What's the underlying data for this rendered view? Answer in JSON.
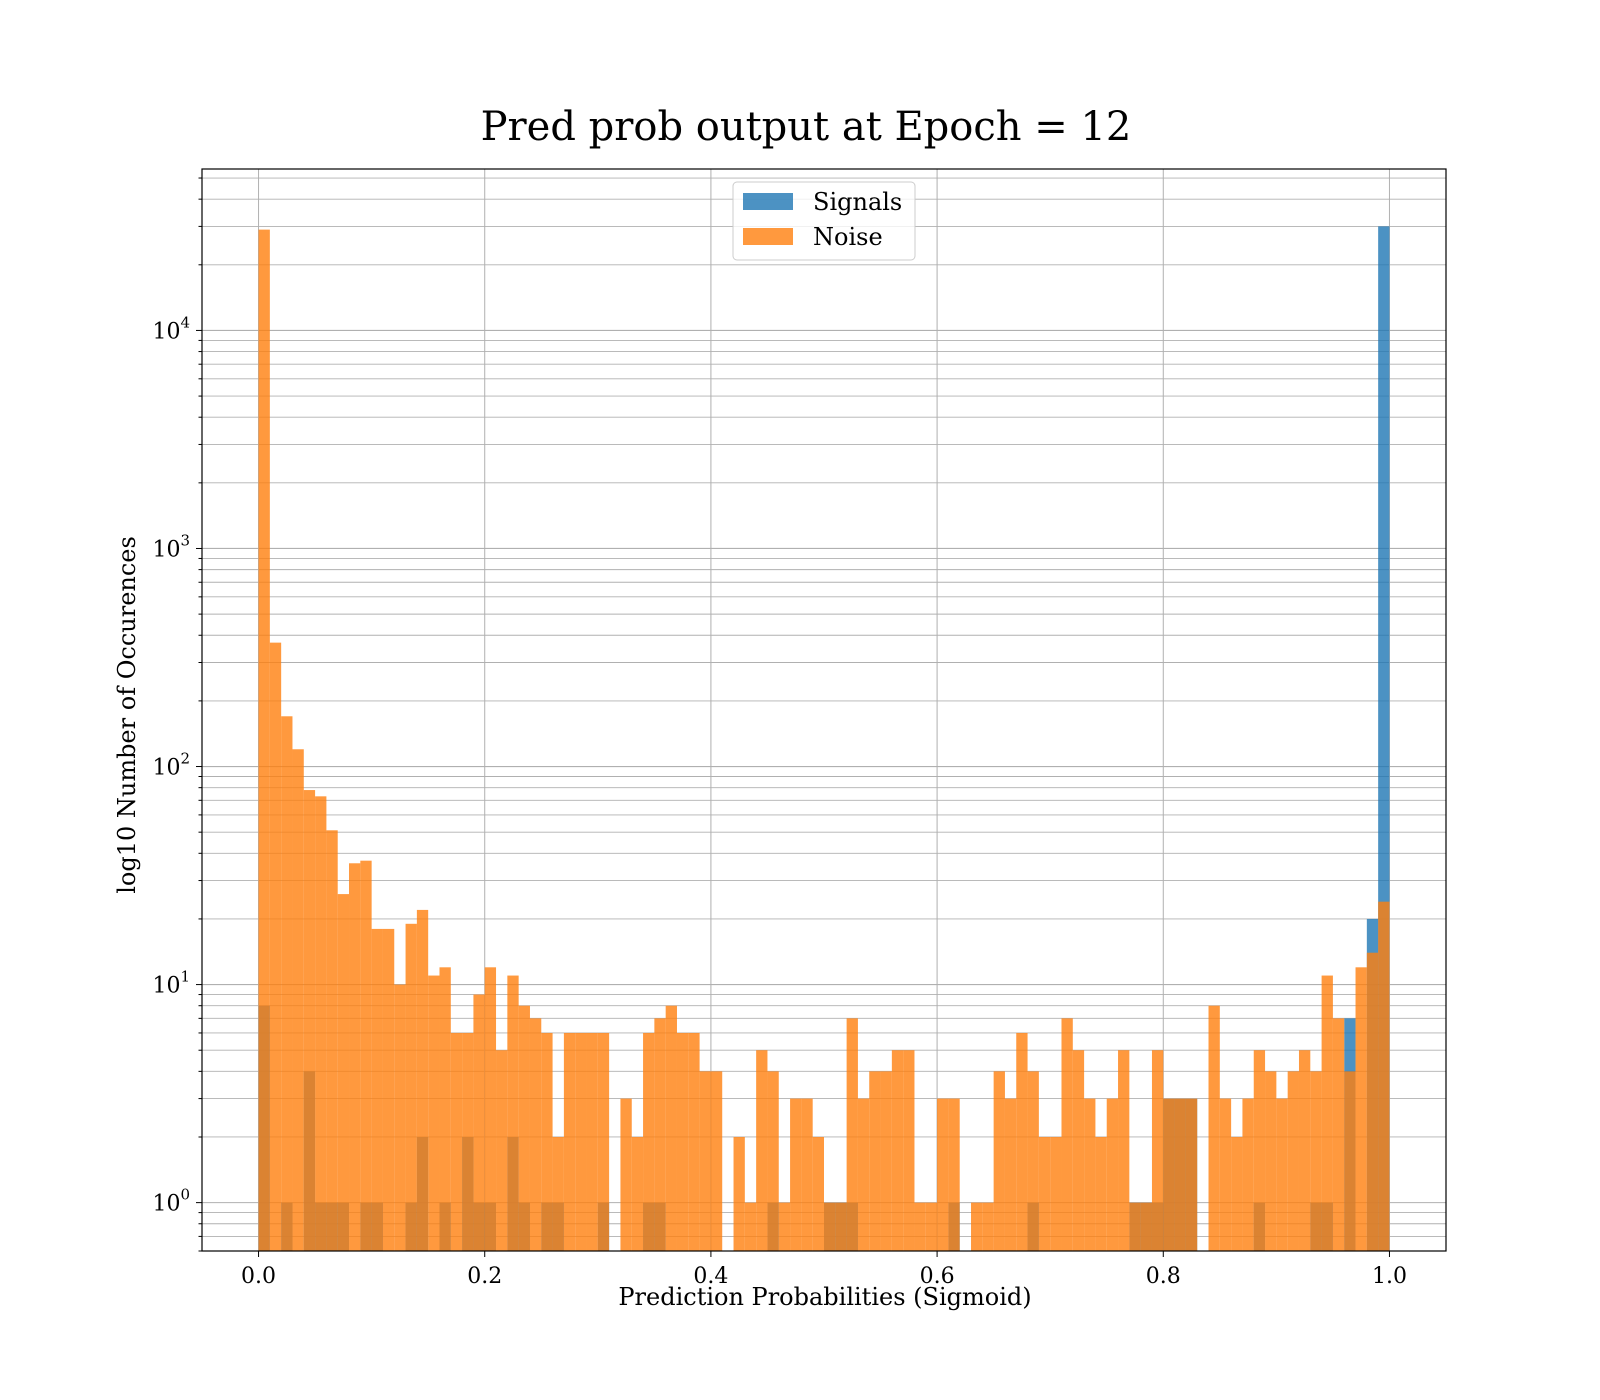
{
  "chart_data": {
    "type": "bar",
    "title": "Pred prob output at Epoch = 12",
    "xlabel": "Prediction Probabilities (Sigmoid)",
    "ylabel": "log10 Number of Occurences",
    "xlim": [
      -0.05,
      1.05
    ],
    "ylim": [
      0.6,
      55000
    ],
    "yscale": "log",
    "grid": true,
    "legend_position": "top-center",
    "bins": 100,
    "x_ticks": [
      "0.0",
      "0.2",
      "0.4",
      "0.6",
      "0.8",
      "1.0"
    ],
    "y_ticks": [
      {
        "value": 1,
        "base": "10",
        "exp": "0"
      },
      {
        "value": 10,
        "base": "10",
        "exp": "1"
      },
      {
        "value": 100,
        "base": "10",
        "exp": "2"
      },
      {
        "value": 1000,
        "base": "10",
        "exp": "3"
      },
      {
        "value": 10000,
        "base": "10",
        "exp": "4"
      }
    ],
    "series": [
      {
        "name": "Signals",
        "color": "#1f77b4",
        "bins": [
          [
            0.0,
            8
          ],
          [
            0.02,
            1
          ],
          [
            0.04,
            4
          ],
          [
            0.05,
            1
          ],
          [
            0.06,
            1
          ],
          [
            0.07,
            1
          ],
          [
            0.09,
            1
          ],
          [
            0.1,
            1
          ],
          [
            0.13,
            1
          ],
          [
            0.14,
            2
          ],
          [
            0.16,
            1
          ],
          [
            0.18,
            2
          ],
          [
            0.19,
            1
          ],
          [
            0.2,
            1
          ],
          [
            0.22,
            2
          ],
          [
            0.23,
            1
          ],
          [
            0.25,
            1
          ],
          [
            0.26,
            1
          ],
          [
            0.3,
            1
          ],
          [
            0.34,
            1
          ],
          [
            0.35,
            1
          ],
          [
            0.45,
            1
          ],
          [
            0.5,
            1
          ],
          [
            0.51,
            1
          ],
          [
            0.52,
            1
          ],
          [
            0.61,
            1
          ],
          [
            0.68,
            1
          ],
          [
            0.77,
            1
          ],
          [
            0.78,
            1
          ],
          [
            0.79,
            1
          ],
          [
            0.8,
            3
          ],
          [
            0.81,
            3
          ],
          [
            0.82,
            3
          ],
          [
            0.88,
            1
          ],
          [
            0.93,
            1
          ],
          [
            0.94,
            1
          ],
          [
            0.96,
            7
          ],
          [
            0.98,
            20
          ],
          [
            0.99,
            30000
          ]
        ]
      },
      {
        "name": "Noise",
        "color": "#ff7f0e",
        "bins": [
          [
            0.0,
            29000
          ],
          [
            0.01,
            370
          ],
          [
            0.02,
            170
          ],
          [
            0.03,
            120
          ],
          [
            0.04,
            78
          ],
          [
            0.05,
            73
          ],
          [
            0.06,
            51
          ],
          [
            0.07,
            26
          ],
          [
            0.08,
            36
          ],
          [
            0.09,
            37
          ],
          [
            0.1,
            18
          ],
          [
            0.11,
            18
          ],
          [
            0.12,
            10
          ],
          [
            0.13,
            19
          ],
          [
            0.14,
            22
          ],
          [
            0.15,
            11
          ],
          [
            0.16,
            12
          ],
          [
            0.17,
            6
          ],
          [
            0.18,
            6
          ],
          [
            0.19,
            9
          ],
          [
            0.2,
            12
          ],
          [
            0.21,
            5
          ],
          [
            0.22,
            11
          ],
          [
            0.23,
            8
          ],
          [
            0.24,
            7
          ],
          [
            0.25,
            6
          ],
          [
            0.26,
            2
          ],
          [
            0.27,
            6
          ],
          [
            0.28,
            6
          ],
          [
            0.29,
            6
          ],
          [
            0.3,
            6
          ],
          [
            0.31,
            0
          ],
          [
            0.32,
            3
          ],
          [
            0.33,
            2
          ],
          [
            0.34,
            6
          ],
          [
            0.35,
            7
          ],
          [
            0.36,
            8
          ],
          [
            0.37,
            6
          ],
          [
            0.38,
            6
          ],
          [
            0.39,
            4
          ],
          [
            0.4,
            4
          ],
          [
            0.41,
            0
          ],
          [
            0.42,
            2
          ],
          [
            0.43,
            1
          ],
          [
            0.44,
            5
          ],
          [
            0.45,
            4
          ],
          [
            0.46,
            1
          ],
          [
            0.47,
            3
          ],
          [
            0.48,
            3
          ],
          [
            0.49,
            2
          ],
          [
            0.5,
            1
          ],
          [
            0.51,
            1
          ],
          [
            0.52,
            7
          ],
          [
            0.53,
            3
          ],
          [
            0.54,
            4
          ],
          [
            0.55,
            4
          ],
          [
            0.56,
            5
          ],
          [
            0.57,
            5
          ],
          [
            0.58,
            1
          ],
          [
            0.59,
            1
          ],
          [
            0.6,
            3
          ],
          [
            0.61,
            3
          ],
          [
            0.62,
            0
          ],
          [
            0.63,
            1
          ],
          [
            0.64,
            1
          ],
          [
            0.65,
            4
          ],
          [
            0.66,
            3
          ],
          [
            0.67,
            6
          ],
          [
            0.68,
            4
          ],
          [
            0.69,
            2
          ],
          [
            0.7,
            2
          ],
          [
            0.71,
            7
          ],
          [
            0.72,
            5
          ],
          [
            0.73,
            3
          ],
          [
            0.74,
            2
          ],
          [
            0.75,
            3
          ],
          [
            0.76,
            5
          ],
          [
            0.77,
            1
          ],
          [
            0.78,
            1
          ],
          [
            0.79,
            5
          ],
          [
            0.8,
            3
          ],
          [
            0.81,
            3
          ],
          [
            0.82,
            3
          ],
          [
            0.83,
            0
          ],
          [
            0.84,
            8
          ],
          [
            0.85,
            3
          ],
          [
            0.86,
            2
          ],
          [
            0.87,
            3
          ],
          [
            0.88,
            5
          ],
          [
            0.89,
            4
          ],
          [
            0.9,
            3
          ],
          [
            0.91,
            4
          ],
          [
            0.92,
            5
          ],
          [
            0.93,
            4
          ],
          [
            0.94,
            11
          ],
          [
            0.95,
            7
          ],
          [
            0.96,
            4
          ],
          [
            0.97,
            12
          ],
          [
            0.98,
            14
          ],
          [
            0.99,
            24
          ]
        ]
      }
    ]
  }
}
